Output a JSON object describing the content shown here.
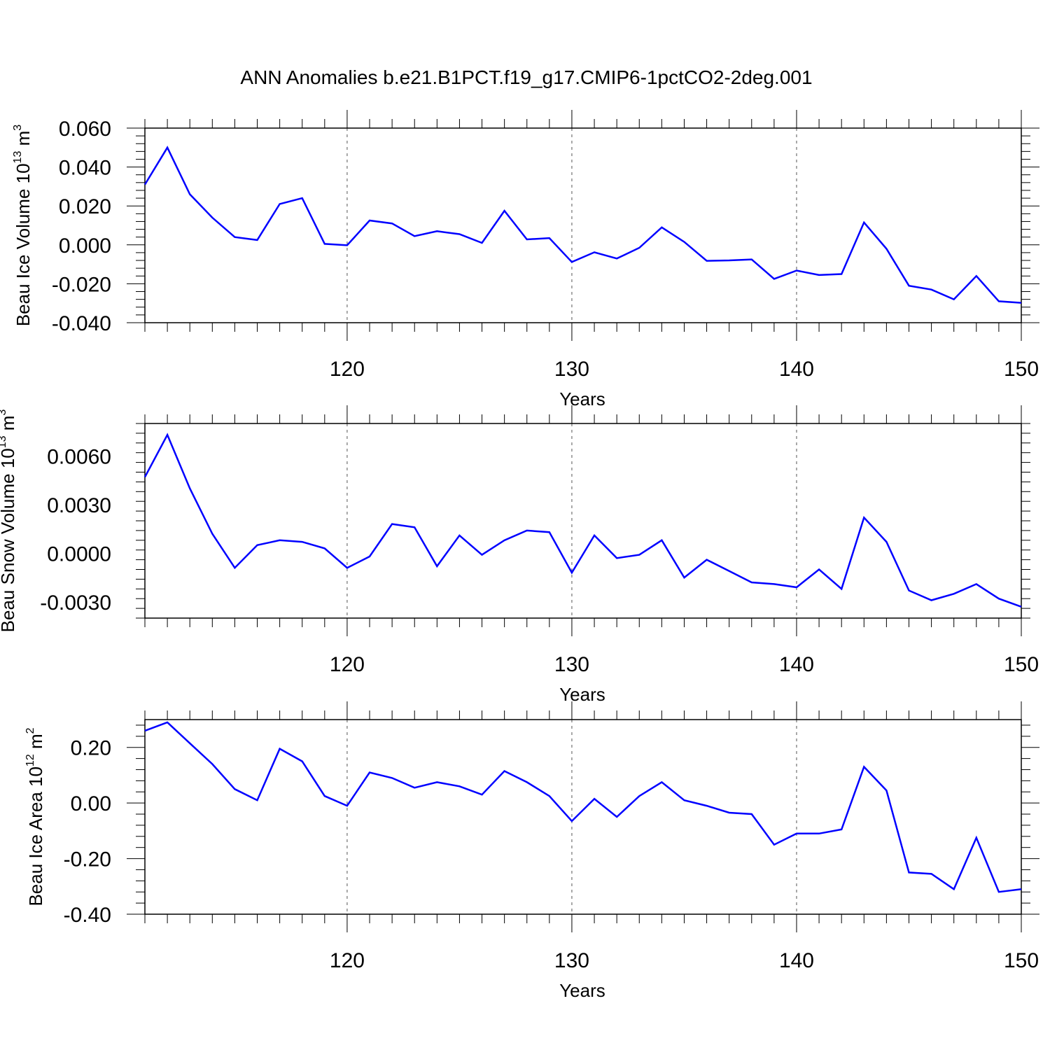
{
  "title": "ANN Anomalies b.e21.B1PCT.f19_g17.CMIP6-1pctCO2-2deg.001",
  "colors": {
    "line": "#0000ff",
    "axis": "#000000",
    "grid": "#555555"
  },
  "chart_data": [
    {
      "type": "line",
      "ylabel_main": "Beau Ice Volume 10",
      "ylabel_exp": "13",
      "ylabel_unit": " m",
      "ylabel_unit_exp": "3",
      "xlabel": "Years",
      "xlim": [
        111,
        150
      ],
      "ylim": [
        -0.04,
        0.06
      ],
      "yticks": [
        -0.04,
        -0.02,
        0.0,
        0.02,
        0.04,
        0.06
      ],
      "ytick_labels": [
        "-0.040",
        "-0.020",
        "0.000",
        "0.020",
        "0.040",
        "0.060"
      ],
      "xticks": [
        120,
        130,
        140,
        150
      ],
      "xtick_labels": [
        "120",
        "130",
        "140",
        "150"
      ],
      "gridlines_x": [
        120,
        130,
        140
      ],
      "x": [
        111,
        112,
        113,
        114,
        115,
        116,
        117,
        118,
        119,
        120,
        121,
        122,
        123,
        124,
        125,
        126,
        127,
        128,
        129,
        130,
        131,
        132,
        133,
        134,
        135,
        136,
        137,
        138,
        139,
        140,
        141,
        142,
        143,
        144,
        145,
        146,
        147,
        148,
        149,
        150
      ],
      "y": [
        0.031,
        0.05,
        0.026,
        0.014,
        0.004,
        0.0025,
        0.021,
        0.024,
        0.0005,
        -0.0002,
        0.0125,
        0.011,
        0.0045,
        0.007,
        0.0055,
        0.001,
        0.0175,
        0.0028,
        0.0035,
        -0.0088,
        -0.0038,
        -0.007,
        -0.0015,
        0.009,
        0.0015,
        -0.0082,
        -0.008,
        -0.0075,
        -0.0175,
        -0.0132,
        -0.0155,
        -0.015,
        0.0115,
        -0.002,
        -0.021,
        -0.023,
        -0.028,
        -0.016,
        -0.029,
        -0.0298
      ]
    },
    {
      "type": "line",
      "ylabel_main": "Beau Snow Volume 10",
      "ylabel_exp": "13",
      "ylabel_unit": " m",
      "ylabel_unit_exp": "3",
      "xlabel": "Years",
      "xlim": [
        111,
        150
      ],
      "ylim": [
        -0.004,
        0.008
      ],
      "yticks": [
        -0.003,
        0.0,
        0.003,
        0.006
      ],
      "ytick_labels": [
        "-0.0030",
        "0.0000",
        "0.0030",
        "0.0060"
      ],
      "xticks": [
        120,
        130,
        140,
        150
      ],
      "xtick_labels": [
        "120",
        "130",
        "140",
        "150"
      ],
      "gridlines_x": [
        120,
        130,
        140
      ],
      "x": [
        111,
        112,
        113,
        114,
        115,
        116,
        117,
        118,
        119,
        120,
        121,
        122,
        123,
        124,
        125,
        126,
        127,
        128,
        129,
        130,
        131,
        132,
        133,
        134,
        135,
        136,
        137,
        138,
        139,
        140,
        141,
        142,
        143,
        144,
        145,
        146,
        147,
        148,
        149,
        150
      ],
      "y": [
        0.0047,
        0.0073,
        0.004,
        0.0012,
        -0.0009,
        0.0005,
        0.0008,
        0.0007,
        0.0003,
        -0.0009,
        -0.0002,
        0.0018,
        0.0016,
        -0.0008,
        0.0011,
        -0.0001,
        0.0008,
        0.0014,
        0.0013,
        -0.0012,
        0.0011,
        -0.0003,
        -0.0001,
        0.0008,
        -0.0015,
        -0.0004,
        -0.0011,
        -0.0018,
        -0.0019,
        -0.0021,
        -0.001,
        -0.0022,
        0.0022,
        0.0007,
        -0.0023,
        -0.0029,
        -0.0025,
        -0.0019,
        -0.0028,
        -0.0033
      ]
    },
    {
      "type": "line",
      "ylabel_main": "Beau Ice Area 10",
      "ylabel_exp": "12",
      "ylabel_unit": " m",
      "ylabel_unit_exp": "2",
      "xlabel": "Years",
      "xlim": [
        111,
        150
      ],
      "ylim": [
        -0.4,
        0.3
      ],
      "yticks": [
        -0.4,
        -0.2,
        0.0,
        0.2
      ],
      "ytick_labels": [
        "-0.40",
        "-0.20",
        "0.00",
        "0.20"
      ],
      "xticks": [
        120,
        130,
        140,
        150
      ],
      "xtick_labels": [
        "120",
        "130",
        "140",
        "150"
      ],
      "gridlines_x": [
        120,
        130,
        140
      ],
      "x": [
        111,
        112,
        113,
        114,
        115,
        116,
        117,
        118,
        119,
        120,
        121,
        122,
        123,
        124,
        125,
        126,
        127,
        128,
        129,
        130,
        131,
        132,
        133,
        134,
        135,
        136,
        137,
        138,
        139,
        140,
        141,
        142,
        143,
        144,
        145,
        146,
        147,
        148,
        149,
        150
      ],
      "y": [
        0.26,
        0.29,
        0.215,
        0.14,
        0.05,
        0.01,
        0.195,
        0.15,
        0.025,
        -0.01,
        0.11,
        0.09,
        0.055,
        0.075,
        0.06,
        0.03,
        0.115,
        0.075,
        0.025,
        -0.065,
        0.015,
        -0.05,
        0.025,
        0.075,
        0.01,
        -0.01,
        -0.035,
        -0.04,
        -0.15,
        -0.11,
        -0.11,
        -0.095,
        0.13,
        0.045,
        -0.25,
        -0.255,
        -0.31,
        -0.125,
        -0.32,
        -0.31
      ]
    }
  ]
}
